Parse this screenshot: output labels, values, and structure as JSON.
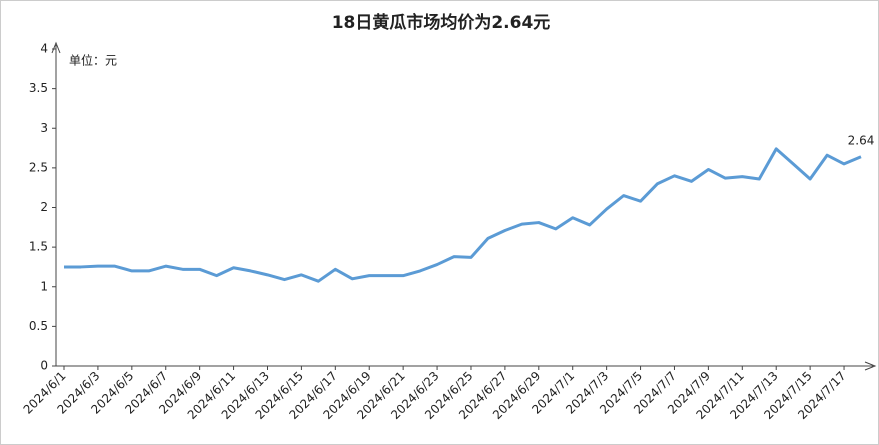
{
  "chart_data": {
    "type": "line",
    "title": "18日黄瓜市场均价为2.64元",
    "unit_label": "单位：元",
    "categories": [
      "2024/6/1",
      null,
      "2024/6/3",
      null,
      "2024/6/5",
      null,
      "2024/6/7",
      null,
      "2024/6/9",
      null,
      "2024/6/11",
      null,
      "2024/6/13",
      null,
      "2024/6/15",
      null,
      "2024/6/17",
      null,
      "2024/6/19",
      null,
      "2024/6/21",
      null,
      "2024/6/23",
      null,
      "2024/6/25",
      null,
      "2024/6/27",
      null,
      "2024/6/29",
      null,
      "2024/7/1",
      null,
      "2024/7/3",
      null,
      "2024/7/5",
      null,
      "2024/7/7",
      null,
      "2024/7/9",
      null,
      "2024/7/11",
      null,
      "2024/7/13",
      null,
      "2024/7/15",
      null,
      "2024/7/17",
      null
    ],
    "series": [
      {
        "name": "均价",
        "color": "#5b9bd5",
        "values": [
          1.25,
          1.25,
          1.26,
          1.26,
          1.2,
          1.2,
          1.26,
          1.22,
          1.22,
          1.14,
          1.24,
          1.2,
          1.15,
          1.09,
          1.15,
          1.07,
          1.22,
          1.1,
          1.14,
          1.14,
          1.14,
          1.2,
          1.28,
          1.38,
          1.37,
          1.61,
          1.71,
          1.79,
          1.81,
          1.73,
          1.87,
          1.78,
          1.98,
          2.15,
          2.08,
          2.3,
          2.4,
          2.33,
          2.48,
          2.37,
          2.39,
          2.36,
          2.74,
          2.55,
          2.36,
          2.66,
          2.55,
          2.64
        ]
      }
    ],
    "ylim": [
      0,
      4
    ],
    "yticks": [
      0,
      0.5,
      1,
      1.5,
      2,
      2.5,
      3,
      3.5,
      4
    ],
    "grid": false
  }
}
